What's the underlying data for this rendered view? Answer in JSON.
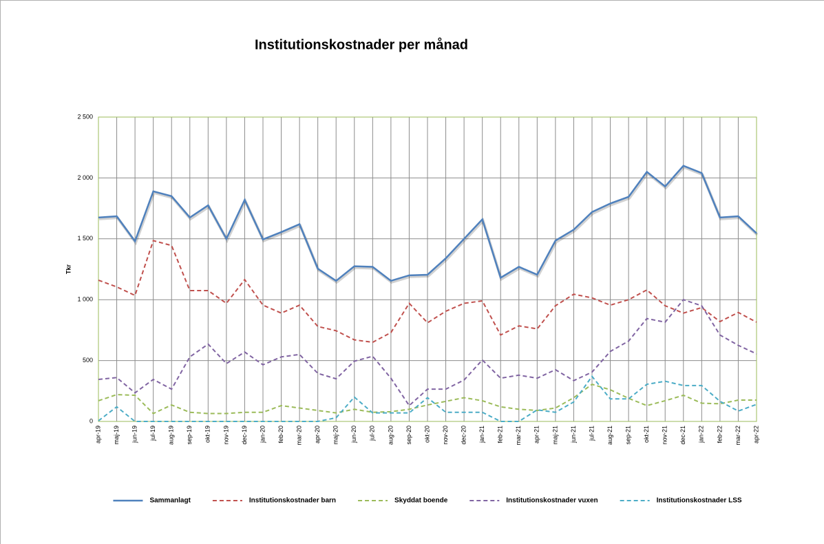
{
  "chart_data": {
    "type": "line",
    "title": "Institutionskostnader per månad",
    "y_label": "Tkr",
    "categories": [
      "apr-19",
      "maj-19",
      "jun-19",
      "jul-19",
      "aug-19",
      "sep-19",
      "okt-19",
      "nov-19",
      "dec-19",
      "jan-20",
      "feb-20",
      "mar-20",
      "apr-20",
      "maj-20",
      "jun-20",
      "jul-20",
      "aug-20",
      "sep-20",
      "okt-20",
      "nov-20",
      "dec-20",
      "jan-21",
      "feb-21",
      "mar-21",
      "apr-21",
      "maj-21",
      "jun-21",
      "jul-21",
      "aug-21",
      "sep-21",
      "okt-21",
      "nov-21",
      "dec-21",
      "jan-22",
      "feb-22",
      "mar-22",
      "apr-22"
    ],
    "series": [
      {
        "name": "Sammanlagt",
        "color": "#4f81bd",
        "line_style": "solid",
        "values": [
          1675,
          1685,
          1480,
          1890,
          1850,
          1675,
          1775,
          1500,
          1820,
          1495,
          1555,
          1620,
          1255,
          1155,
          1275,
          1270,
          1155,
          1200,
          1205,
          1340,
          1500,
          1660,
          1180,
          1270,
          1205,
          1485,
          1575,
          1720,
          1790,
          1845,
          2050,
          1930,
          2100,
          2040,
          1675,
          1685,
          1545
        ]
      },
      {
        "name": "Institutionskostnader barn",
        "color": "#c0504d",
        "line_style": "dashed",
        "values": [
          1160,
          1105,
          1035,
          1485,
          1445,
          1075,
          1075,
          970,
          1165,
          955,
          890,
          955,
          780,
          745,
          670,
          650,
          730,
          970,
          810,
          905,
          970,
          990,
          710,
          785,
          760,
          950,
          1045,
          1015,
          955,
          1000,
          1080,
          950,
          890,
          935,
          820,
          895,
          815
        ]
      },
      {
        "name": "Skyddat boende",
        "color": "#9bbb59",
        "line_style": "dashed",
        "values": [
          170,
          220,
          215,
          65,
          135,
          75,
          65,
          65,
          75,
          75,
          130,
          110,
          90,
          70,
          100,
          75,
          80,
          100,
          135,
          165,
          195,
          170,
          120,
          100,
          90,
          110,
          195,
          305,
          260,
          190,
          130,
          170,
          215,
          150,
          145,
          175,
          175
        ]
      },
      {
        "name": "Institutionskostnader vuxen",
        "color": "#8064a2",
        "line_style": "dashed",
        "values": [
          345,
          360,
          235,
          345,
          265,
          530,
          635,
          475,
          570,
          465,
          530,
          550,
          395,
          350,
          495,
          535,
          355,
          130,
          265,
          265,
          340,
          505,
          355,
          380,
          355,
          425,
          335,
          405,
          575,
          660,
          845,
          815,
          1000,
          950,
          710,
          625,
          555
        ]
      },
      {
        "name": "Institutionskostnader LSS",
        "color": "#4bacc6",
        "line_style": "dashed",
        "values": [
          5,
          120,
          0,
          0,
          0,
          0,
          0,
          0,
          0,
          0,
          0,
          0,
          0,
          30,
          200,
          70,
          70,
          70,
          195,
          75,
          75,
          75,
          0,
          0,
          95,
          75,
          160,
          370,
          185,
          185,
          305,
          330,
          295,
          295,
          165,
          85,
          140
        ]
      }
    ],
    "ylim": [
      0,
      2500
    ],
    "yticks": [
      0,
      500,
      {
        "value": 1000,
        "label": "1 000"
      },
      {
        "value": 1500,
        "label": "1 500"
      },
      {
        "value": 2000,
        "label": "2 000"
      },
      {
        "value": 2500,
        "label": "2 500"
      }
    ],
    "grid": true,
    "legend": "bottom"
  }
}
